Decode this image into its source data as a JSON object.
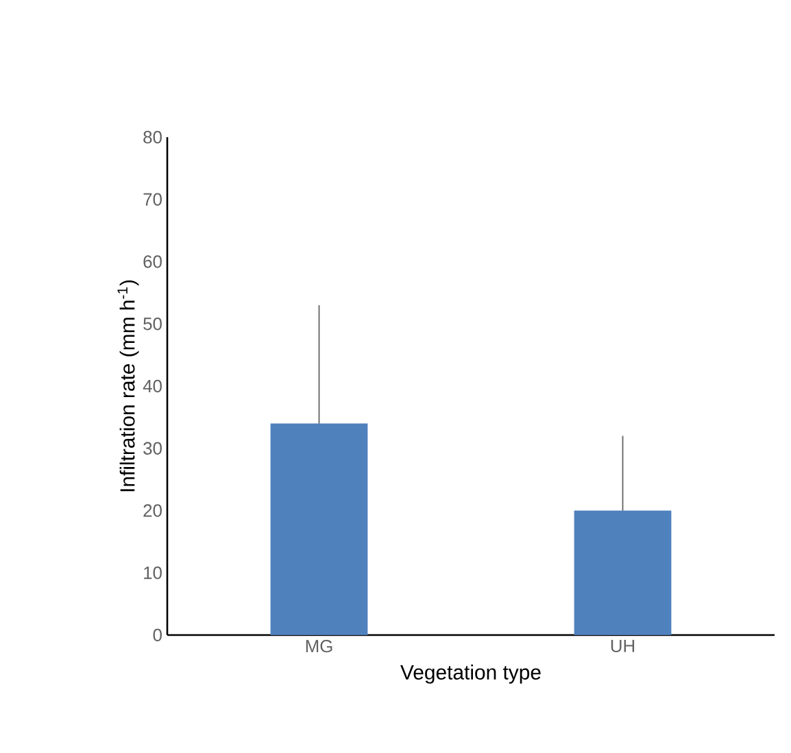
{
  "chart_data": {
    "type": "bar",
    "xlabel": "Vegetation type",
    "ylabel": "Infiltration rate (mm h$^{-1}$)",
    "categories": [
      "MG",
      "UH"
    ],
    "values": [
      34,
      20
    ],
    "errors": [
      19,
      12
    ],
    "color": "#4f81bd",
    "ylim": [
      0,
      80
    ],
    "yticks": [
      0,
      10,
      20,
      30,
      40,
      50,
      60,
      70,
      80
    ]
  }
}
